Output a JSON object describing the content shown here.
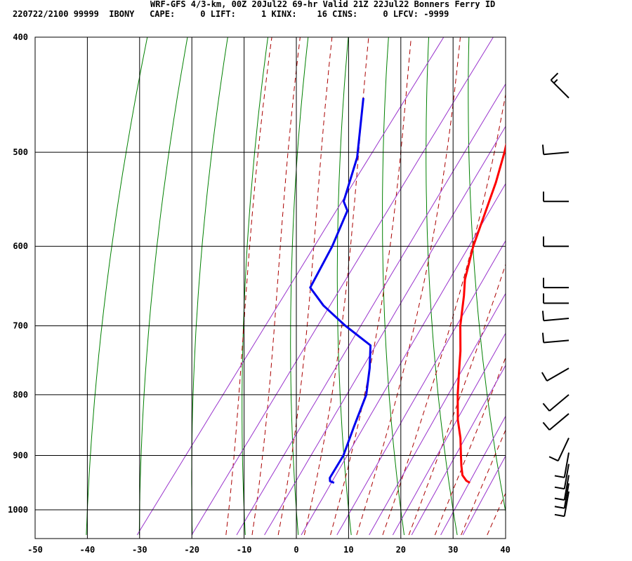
{
  "header": {
    "title": "WRF-GFS 4/3-km, 00Z 20Jul22 69-hr Valid 21Z 22Jul22 Bonners Ferry ID",
    "indices": "220722/2100 99999  IBONY   CAPE:     0 LIFT:     1 KINX:    16 CINS:     0 LFCV: -9999"
  },
  "chart_data": {
    "type": "line",
    "title": "WRF-GFS 4/3-km, 00Z 20Jul22 69-hr Valid 21Z 22Jul22 Bonners Ferry ID",
    "xlabel": "",
    "ylabel": "",
    "xlim": [
      -50,
      40
    ],
    "ylim": [
      1050,
      400
    ],
    "y_scale": "skew-T log-p (pressure)",
    "x_ticks": [
      "-50",
      "-40",
      "-30",
      "-20",
      "-10",
      "0",
      "10",
      "20",
      "30",
      "40"
    ],
    "y_ticks": [
      "400",
      "500",
      "600",
      "700",
      "800",
      "900",
      "1000"
    ],
    "grid": true,
    "colors": {
      "temperature": "#ff0000",
      "dewpoint": "#0000ee",
      "dry_adiabats": "#008000",
      "moist_adiabats": "#aa0000",
      "mixing_ratio": "#9933cc"
    },
    "series": [
      {
        "points": [
          {
            "p": 949,
            "t": 29.5
          },
          {
            "p": 945,
            "t": 28.5
          },
          {
            "p": 935,
            "t": 27.0
          },
          {
            "p": 918,
            "t": 25.5
          },
          {
            "p": 900,
            "t": 24.0
          },
          {
            "p": 870,
            "t": 21.5
          },
          {
            "p": 840,
            "t": 18.5
          },
          {
            "p": 800,
            "t": 15.0
          },
          {
            "p": 770,
            "t": 12.5
          },
          {
            "p": 735,
            "t": 9.5
          },
          {
            "p": 700,
            "t": 6.0
          },
          {
            "p": 660,
            "t": 2.5
          },
          {
            "p": 640,
            "t": 0.5
          },
          {
            "p": 600,
            "t": -2.5
          },
          {
            "p": 560,
            "t": -5.0
          },
          {
            "p": 530,
            "t": -7.0
          },
          {
            "p": 500,
            "t": -9.5
          },
          {
            "p": 470,
            "t": -12.5
          },
          {
            "p": 450,
            "t": -15.0
          }
        ]
      },
      {
        "points": [
          {
            "p": 949,
            "t": 3.5
          },
          {
            "p": 946,
            "t": 2.5
          },
          {
            "p": 940,
            "t": 2.0
          },
          {
            "p": 900,
            "t": 1.5
          },
          {
            "p": 850,
            "t": -0.5
          },
          {
            "p": 800,
            "t": -2.5
          },
          {
            "p": 760,
            "t": -5.5
          },
          {
            "p": 727,
            "t": -8.5
          },
          {
            "p": 700,
            "t": -16.0
          },
          {
            "p": 673,
            "t": -23.0
          },
          {
            "p": 650,
            "t": -28.0
          },
          {
            "p": 600,
            "t": -29.5
          },
          {
            "p": 560,
            "t": -31.5
          },
          {
            "p": 550,
            "t": -33.5
          },
          {
            "p": 505,
            "t": -37.0
          },
          {
            "p": 450,
            "t": -44.0
          }
        ]
      }
    ],
    "wind_barbs": [
      {
        "p": 450,
        "dir": 315,
        "spd": 15
      },
      {
        "p": 500,
        "dir": 265,
        "spd": 10
      },
      {
        "p": 550,
        "dir": 270,
        "spd": 10
      },
      {
        "p": 600,
        "dir": 270,
        "spd": 10
      },
      {
        "p": 650,
        "dir": 270,
        "spd": 10
      },
      {
        "p": 670,
        "dir": 270,
        "spd": 10
      },
      {
        "p": 690,
        "dir": 265,
        "spd": 10
      },
      {
        "p": 720,
        "dir": 265,
        "spd": 10
      },
      {
        "p": 760,
        "dir": 240,
        "spd": 10
      },
      {
        "p": 800,
        "dir": 230,
        "spd": 10
      },
      {
        "p": 830,
        "dir": 230,
        "spd": 10
      },
      {
        "p": 870,
        "dir": 205,
        "spd": 10
      },
      {
        "p": 895,
        "dir": 190,
        "spd": 10
      },
      {
        "p": 915,
        "dir": 190,
        "spd": 10
      },
      {
        "p": 935,
        "dir": 190,
        "spd": 10
      },
      {
        "p": 950,
        "dir": 190,
        "spd": 10
      },
      {
        "p": 965,
        "dir": 190,
        "spd": 10
      }
    ]
  }
}
